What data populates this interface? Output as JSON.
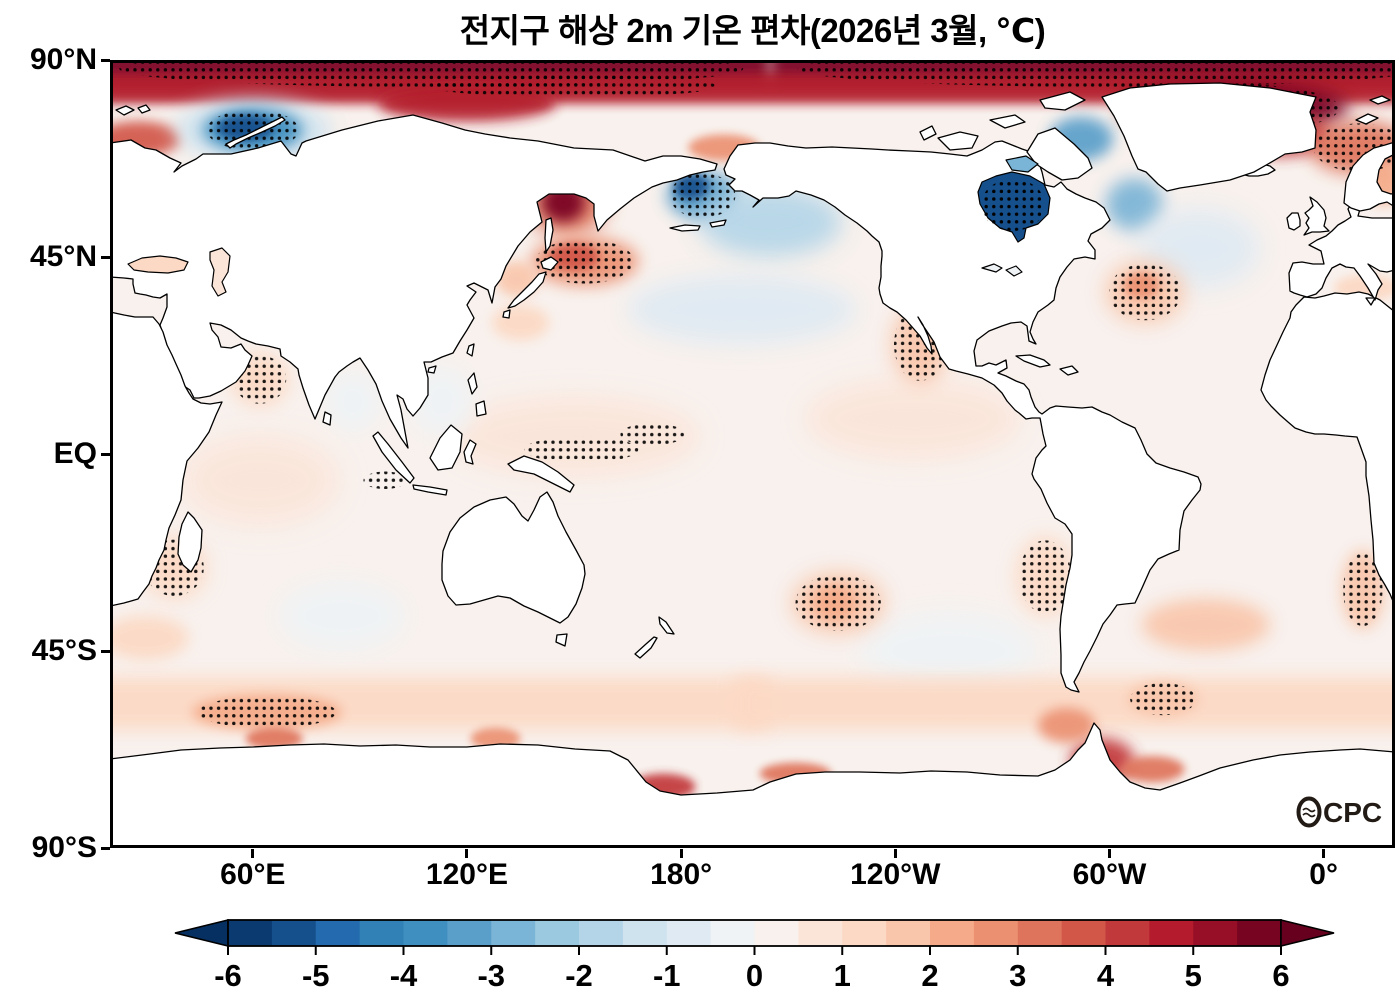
{
  "branding": {
    "logo": "OCPC"
  },
  "chart_data": {
    "type": "heatmap",
    "title": "전지구 해상 2m 기온 편차(2026년 3월, ℃)",
    "subtitle": "",
    "projection": "equirectangular",
    "map_domain": {
      "lon_start": 20,
      "lon_end": 380,
      "lat_min": -90,
      "lat_max": 90
    },
    "x_ticks": [
      {
        "label": "60°E",
        "lon": 60
      },
      {
        "label": "120°E",
        "lon": 120
      },
      {
        "label": "180°",
        "lon": 180
      },
      {
        "label": "120°W",
        "lon": 240
      },
      {
        "label": "60°W",
        "lon": 300
      },
      {
        "label": "0°",
        "lon": 360
      }
    ],
    "y_ticks": [
      {
        "label": "90°N",
        "lat": 90
      },
      {
        "label": "45°N",
        "lat": 45
      },
      {
        "label": "EQ",
        "lat": 0
      },
      {
        "label": "45°S",
        "lat": -45
      },
      {
        "label": "90°S",
        "lat": -90
      }
    ],
    "colorbar": {
      "min": -6,
      "max": 6,
      "step": 0.5,
      "tick_labels": [
        "-6",
        "-5",
        "-4",
        "-3",
        "-2",
        "-1",
        "0",
        "1",
        "2",
        "3",
        "4",
        "5",
        "6"
      ],
      "segments": [
        "#0b3a71",
        "#16508c",
        "#236aae",
        "#3180b6",
        "#3f8fc0",
        "#5a9fca",
        "#7ab4d6",
        "#9ac9e0",
        "#b4d5e8",
        "#cfe3ef",
        "#dfeaf3",
        "#eff3f5",
        "#f8f1ed",
        "#fbe5d9",
        "#fcd9c4",
        "#f9c6ab",
        "#f5ab89",
        "#eb9172",
        "#df745c",
        "#d25749",
        "#c2393b",
        "#b41b2c",
        "#960f27",
        "#770522"
      ],
      "left_arrow": "#053061",
      "right_arrow": "#67001f"
    },
    "ocean_base_anomaly": 0.3,
    "stipple_meaning": "statistically significant anomaly",
    "features": [
      {
        "name": "arctic-polar-cap-west",
        "lon": 110,
        "lat": 88,
        "dlon": 95,
        "dlat": 4.5,
        "anomaly": 6,
        "stippled": true,
        "shape": "rect"
      },
      {
        "name": "arctic-polar-cap-east",
        "lon": 300,
        "lat": 88,
        "dlon": 95,
        "dlat": 4.5,
        "anomaly": 6,
        "stippled": true,
        "shape": "rect"
      },
      {
        "name": "arctic-subpolar-band",
        "lon": 200,
        "lat": 83.5,
        "dlon": 190,
        "dlat": 3.5,
        "anomaly": 4.5,
        "shape": "rect"
      },
      {
        "name": "arctic-atlantic-sector-deep",
        "lon": 335,
        "lat": 79,
        "dlon": 32,
        "dlat": 6,
        "anomaly": 6,
        "stippled": true
      },
      {
        "name": "greenland-sea-warm",
        "lon": 348,
        "lat": 73,
        "dlon": 14,
        "dlat": 5,
        "anomaly": 4
      },
      {
        "name": "norwegian-barents-warm",
        "lon": 370,
        "lat": 70,
        "dlon": 14,
        "dlat": 6,
        "anomaly": 3,
        "stippled": true
      },
      {
        "name": "barents-sw-warm",
        "lon": 28,
        "lat": 72,
        "dlon": 12,
        "dlat": 4,
        "anomaly": 3.8
      },
      {
        "name": "laptev-warm",
        "lon": 120,
        "lat": 80,
        "dlon": 25,
        "dlat": 4,
        "anomaly": 4.5
      },
      {
        "name": "kara-halo-cool",
        "lon": 60,
        "lat": 74,
        "dlon": 22,
        "dlat": 7,
        "anomaly": -1.2
      },
      {
        "name": "kara-sea-cold",
        "lon": 60,
        "lat": 74,
        "dlon": 14,
        "dlat": 5,
        "anomaly": -4,
        "stippled": true
      },
      {
        "name": "kara-sea-core",
        "lon": 58,
        "lat": 74.5,
        "dlon": 8,
        "dlat": 3,
        "anomaly": -5.5
      },
      {
        "name": "okhotsk-warm-halo",
        "lon": 148,
        "lat": 57,
        "dlon": 11,
        "dlat": 7,
        "anomaly": 3.2
      },
      {
        "name": "okhotsk-core",
        "lon": 147,
        "lat": 57.5,
        "dlon": 6,
        "dlat": 4.5,
        "anomaly": 5.5
      },
      {
        "name": "nw-pacific-warm",
        "lon": 153,
        "lat": 44,
        "dlon": 15,
        "dlat": 5.5,
        "anomaly": 2.6,
        "stippled": true
      },
      {
        "name": "nw-pacific-core",
        "lon": 150,
        "lat": 45,
        "dlon": 7,
        "dlat": 3,
        "anomaly": 3.6
      },
      {
        "name": "sea-of-japan-warm",
        "lon": 134,
        "lat": 40,
        "dlon": 6,
        "dlat": 4,
        "anomaly": 1.8
      },
      {
        "name": "kuroshio-warm",
        "lon": 135,
        "lat": 30,
        "dlon": 8,
        "dlat": 4,
        "anomaly": 1.4
      },
      {
        "name": "bering-sea-cold",
        "lon": 186,
        "lat": 59,
        "dlon": 10,
        "dlat": 5.5,
        "anomaly": -3.2,
        "stippled": true
      },
      {
        "name": "bering-core",
        "lon": 183,
        "lat": 61,
        "dlon": 5,
        "dlat": 3,
        "anomaly": -5.2
      },
      {
        "name": "gulf-of-alaska-cool",
        "lon": 205,
        "lat": 53,
        "dlon": 20,
        "dlat": 8,
        "anomaly": -1.6
      },
      {
        "name": "n-pacific-central-cool",
        "lon": 197,
        "lat": 33,
        "dlon": 32,
        "dlat": 8,
        "anomaly": -0.8
      },
      {
        "name": "chukchi-warm",
        "lon": 192,
        "lat": 70,
        "dlon": 10,
        "dlat": 3,
        "anomaly": 2.5
      },
      {
        "name": "baffin-bay-cold",
        "lon": 292,
        "lat": 72,
        "dlon": 9,
        "dlat": 5,
        "anomaly": -3.5
      },
      {
        "name": "labrador-sea-cold",
        "lon": 307,
        "lat": 57,
        "dlon": 8,
        "dlat": 6,
        "anomaly": -2.8
      },
      {
        "name": "n-atlantic-central-cool",
        "lon": 325,
        "lat": 47,
        "dlon": 17,
        "dlat": 9,
        "anomaly": -0.9
      },
      {
        "name": "nw-atlantic-warm",
        "lon": 310,
        "lat": 37,
        "dlon": 11,
        "dlat": 7,
        "anomaly": 1.9,
        "stippled": true
      },
      {
        "name": "nw-atlantic-core",
        "lon": 309,
        "lat": 38.5,
        "dlon": 5,
        "dlat": 3,
        "anomaly": 2.6
      },
      {
        "name": "baltic-warm",
        "lon": 377,
        "lat": 62,
        "dlon": 5,
        "dlat": 5,
        "anomaly": 2.4
      },
      {
        "name": "mediterranean-warm",
        "lon": 372,
        "lat": 38,
        "dlon": 9,
        "dlat": 3,
        "anomaly": 1.2
      },
      {
        "name": "tropical-pacific-warm-west",
        "lon": 150,
        "lat": 4,
        "dlon": 35,
        "dlat": 9,
        "anomaly": 0.8
      },
      {
        "name": "tropical-pacific-warm-east",
        "lon": 245,
        "lat": 8,
        "dlon": 30,
        "dlat": 9,
        "anomaly": 0.9
      },
      {
        "name": "baja-california-warm",
        "lon": 247,
        "lat": 25,
        "dlon": 8,
        "dlat": 9,
        "anomaly": 1.7,
        "stippled": true
      },
      {
        "name": "bay-of-bengal-cool",
        "lon": 88,
        "lat": 12,
        "dlon": 8,
        "dlat": 7,
        "anomaly": -0.4
      },
      {
        "name": "s-china-sea-cool",
        "lon": 113,
        "lat": 12,
        "dlon": 9,
        "dlat": 8,
        "anomaly": -0.4
      },
      {
        "name": "tropical-indian-warm",
        "lon": 62,
        "lat": -6,
        "dlon": 22,
        "dlat": 10,
        "anomaly": 0.7
      },
      {
        "name": "arabian-sea-warm",
        "lon": 62,
        "lat": 17,
        "dlon": 8,
        "dlat": 6,
        "anomaly": 1.1,
        "stippled": true
      },
      {
        "name": "s-indian-central-cool",
        "lon": 85,
        "lat": -37,
        "dlon": 18,
        "dlat": 8,
        "anomaly": -0.4
      },
      {
        "name": "se-pacific-cool",
        "lon": 255,
        "lat": -45,
        "dlon": 25,
        "dlat": 9,
        "anomaly": -0.5
      },
      {
        "name": "s-pacific-warm-blob",
        "lon": 224,
        "lat": -34,
        "dlon": 13,
        "dlat": 7,
        "anomaly": 1.6,
        "stippled": true
      },
      {
        "name": "s-pacific-core",
        "lon": 223,
        "lat": -34,
        "dlon": 6,
        "dlat": 4,
        "anomaly": 2.2
      },
      {
        "name": "chile-coast-warm",
        "lon": 282,
        "lat": -28,
        "dlon": 8,
        "dlat": 9,
        "anomaly": 1.3,
        "stippled": true
      },
      {
        "name": "s-atlantic-warm",
        "lon": 327,
        "lat": -39,
        "dlon": 18,
        "dlat": 6,
        "anomaly": 1.5
      },
      {
        "name": "benguela-warm",
        "lon": 371,
        "lat": -31,
        "dlon": 6,
        "dlat": 9,
        "anomaly": 1.6,
        "stippled": true
      },
      {
        "name": "sw-indian-warm",
        "lon": 38,
        "lat": -26,
        "dlon": 9,
        "dlat": 7,
        "anomaly": 1.2,
        "stippled": true
      },
      {
        "name": "agulhas-warm",
        "lon": 30,
        "lat": -42,
        "dlon": 12,
        "dlat": 5,
        "anomaly": 1.4
      },
      {
        "name": "southern-ocean-band-west",
        "lon": 110,
        "lat": -57,
        "dlon": 95,
        "dlat": 6,
        "anomaly": 1.4,
        "shape": "rect"
      },
      {
        "name": "southern-ocean-band-east",
        "lon": 290,
        "lat": -57,
        "dlon": 95,
        "dlat": 6,
        "anomaly": 1.2,
        "shape": "rect"
      },
      {
        "name": "s-indian-polar-warm",
        "lon": 64,
        "lat": -59,
        "dlon": 21,
        "dlat": 4,
        "anomaly": 2,
        "stippled": true
      },
      {
        "name": "antarctic-coast-warm-1",
        "lon": 66,
        "lat": -65,
        "dlon": 8,
        "dlat": 2.5,
        "anomaly": 3.2
      },
      {
        "name": "antarctic-coast-warm-2",
        "lon": 128,
        "lat": -65,
        "dlon": 7,
        "dlat": 2.5,
        "anomaly": 2.8
      },
      {
        "name": "ross-sea-warm",
        "lon": 175,
        "lat": -76,
        "dlon": 9,
        "dlat": 3,
        "anomaly": 4.2
      },
      {
        "name": "amundsen-coast-warm",
        "lon": 212,
        "lat": -73,
        "dlon": 10,
        "dlat": 2.5,
        "anomaly": 3
      },
      {
        "name": "weddell-peninsula-warm",
        "lon": 298,
        "lat": -70,
        "dlon": 9,
        "dlat": 5,
        "anomaly": 4.2
      },
      {
        "name": "weddell-east-warm",
        "lon": 312,
        "lat": -72,
        "dlon": 9,
        "dlat": 3,
        "anomaly": 3.4
      },
      {
        "name": "drake-warm",
        "lon": 288,
        "lat": -62,
        "dlon": 8,
        "dlat": 4,
        "anomaly": 2.6
      },
      {
        "name": "weddell-shelf-cool",
        "lon": 330,
        "lat": -78,
        "dlon": 10,
        "dlat": 2.5,
        "anomaly": -0.8
      },
      {
        "name": "scotia-warm",
        "lon": 315,
        "lat": -56,
        "dlon": 10,
        "dlat": 4,
        "anomaly": 1.6,
        "stippled": true
      }
    ],
    "stipple_patches": [
      {
        "name": "equatorial-pacific-stipple-west",
        "lon": 152,
        "lat": 1,
        "dlon": 16,
        "dlat": 3
      },
      {
        "name": "equatorial-pacific-stipple-central",
        "lon": 172,
        "lat": 4.5,
        "dlon": 9,
        "dlat": 2.5
      },
      {
        "name": "hudson-bay-stipple",
        "lon": 273,
        "lat": 57,
        "dlon": 9,
        "dlat": 6
      },
      {
        "name": "sumatra-sw-stipple",
        "lon": 97,
        "lat": -6,
        "dlon": 6,
        "dlat": 2
      },
      {
        "name": "arctic-marginal-stipple",
        "lon": 150,
        "lat": 84,
        "dlon": 40,
        "dlat": 2.5
      }
    ],
    "water_overlays": [
      {
        "name": "hudson-bay",
        "anomaly": -5.2
      },
      {
        "name": "foxe-basin",
        "anomaly": -2.6
      },
      {
        "name": "great-lakes",
        "anomaly": -0.5
      },
      {
        "name": "black-sea",
        "anomaly": 1.1
      },
      {
        "name": "caspian-sea",
        "anomaly": 0.9
      }
    ]
  }
}
